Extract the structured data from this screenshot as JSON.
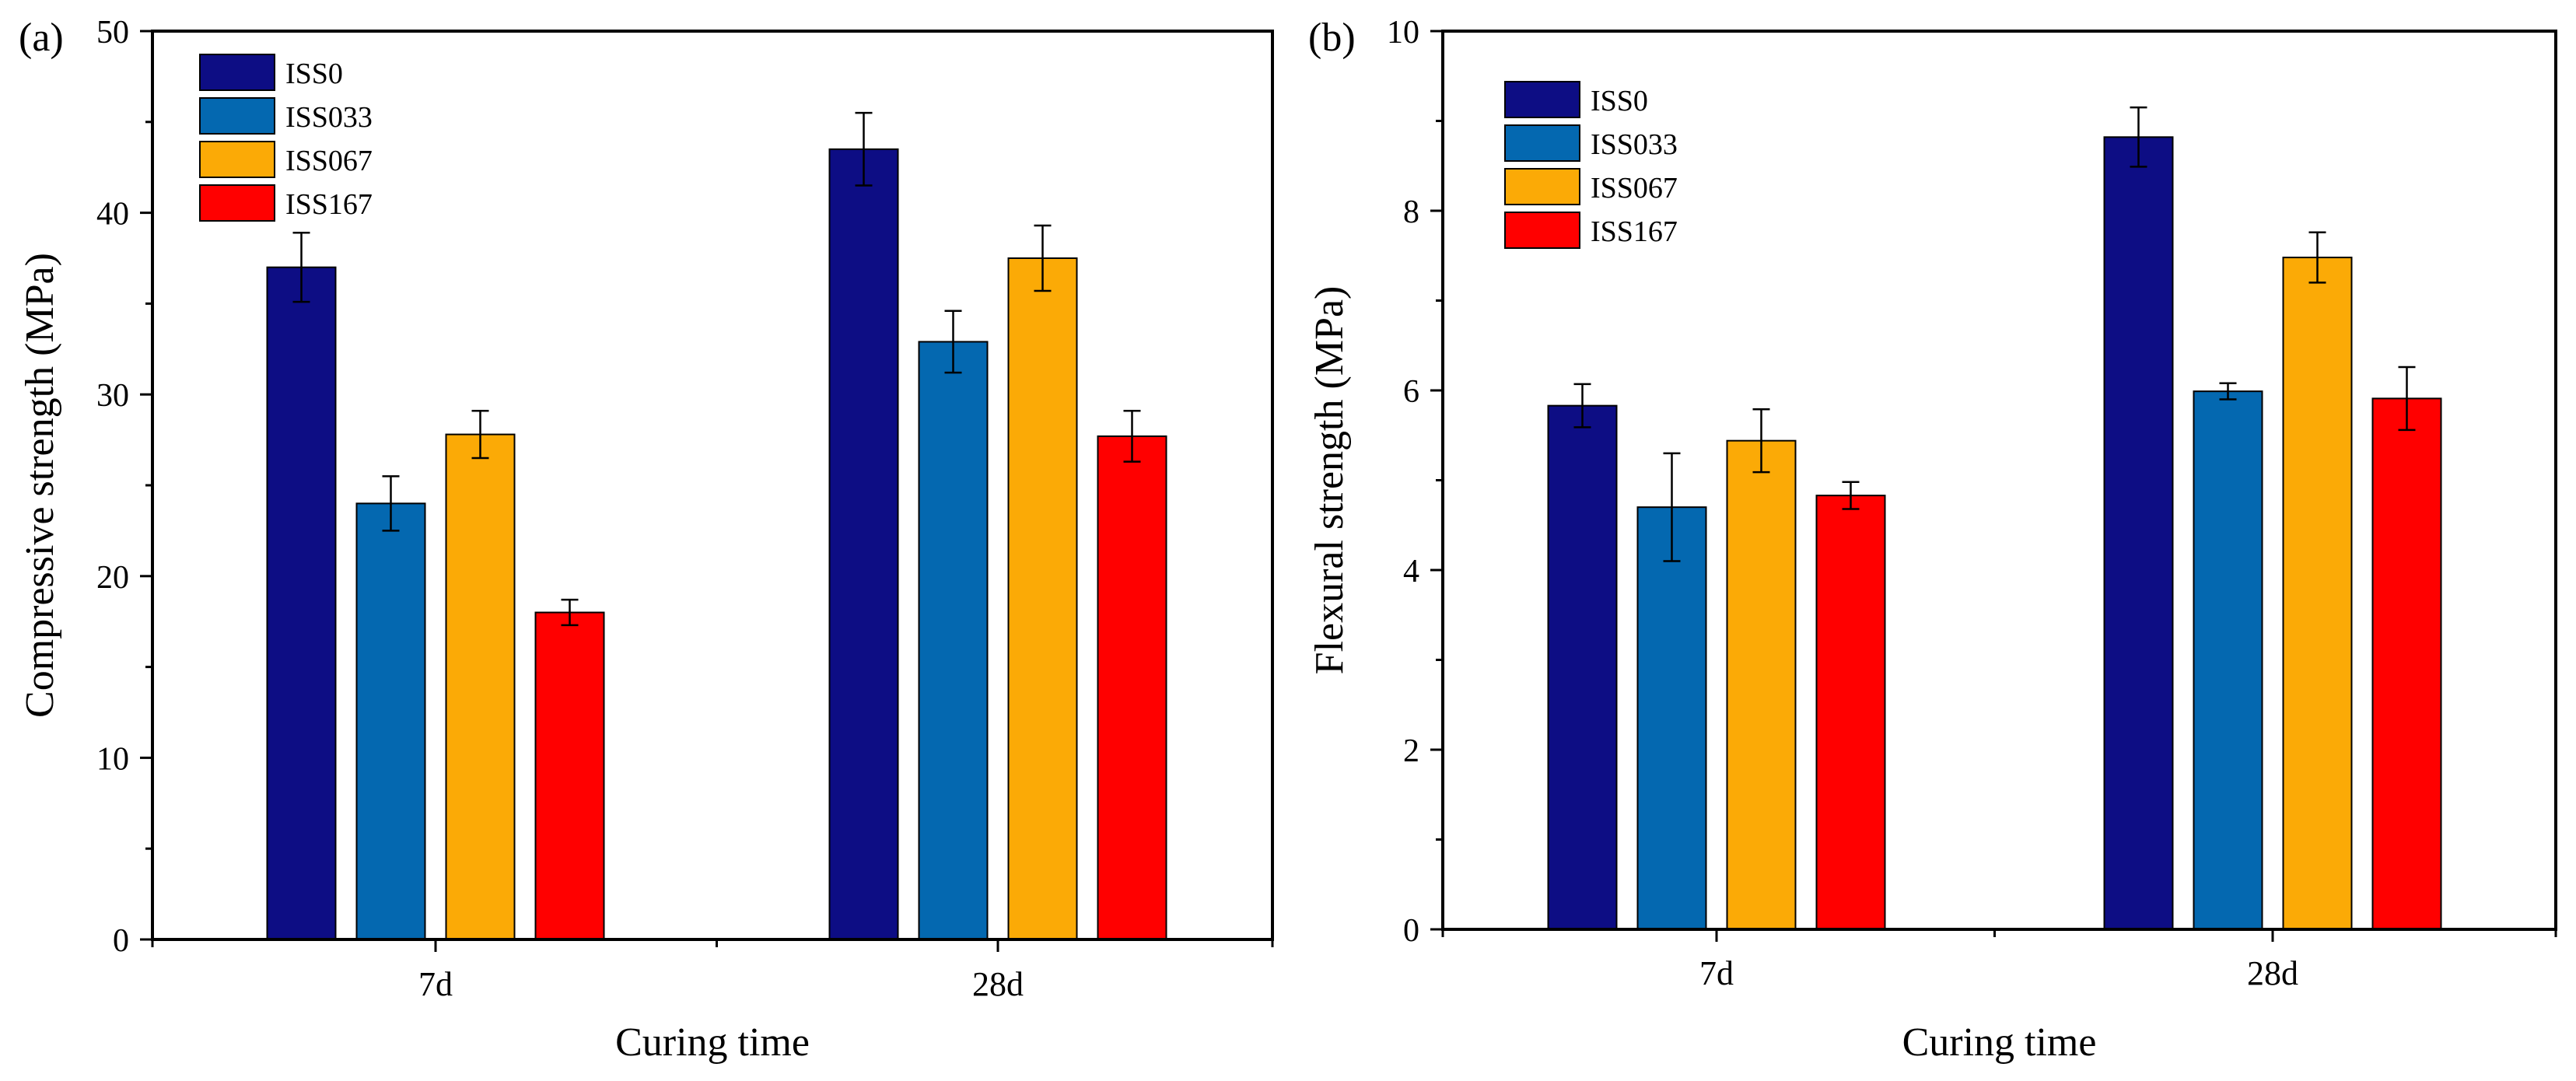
{
  "figure": {
    "panel_count": 2
  },
  "chart_data": [
    {
      "type": "bar",
      "panel_label": "(a)",
      "title": "",
      "xlabel": "Curing time",
      "ylabel": "Compressive strength (MPa)",
      "categories": [
        "7d",
        "28d"
      ],
      "ylim": [
        0,
        50
      ],
      "yticks": [
        0,
        10,
        20,
        30,
        40,
        50
      ],
      "grid": false,
      "legend_position": "top-left",
      "series": [
        {
          "name": "ISS0",
          "color": "#0D0D84",
          "values": [
            37.0,
            43.5
          ],
          "errors": [
            1.9,
            2.0
          ]
        },
        {
          "name": "ISS033",
          "color": "#0468B0",
          "values": [
            24.0,
            32.9
          ],
          "errors": [
            1.5,
            1.7
          ]
        },
        {
          "name": "ISS067",
          "color": "#FBAA06",
          "values": [
            27.8,
            37.5
          ],
          "errors": [
            1.3,
            1.8
          ]
        },
        {
          "name": "ISS167",
          "color": "#FF0000",
          "values": [
            18.0,
            27.7
          ],
          "errors": [
            0.7,
            1.4
          ]
        }
      ]
    },
    {
      "type": "bar",
      "panel_label": "(b)",
      "title": "",
      "xlabel": "Curing time",
      "ylabel": "Flexural strength (MPa)",
      "categories": [
        "7d",
        "28d"
      ],
      "ylim": [
        0,
        10
      ],
      "yticks": [
        0,
        2,
        4,
        6,
        8,
        10
      ],
      "grid": false,
      "legend_position": "top-left",
      "series": [
        {
          "name": "ISS0",
          "color": "#0D0D84",
          "values": [
            5.83,
            8.82
          ],
          "errors": [
            0.24,
            0.33
          ]
        },
        {
          "name": "ISS033",
          "color": "#0468B0",
          "values": [
            4.7,
            5.99
          ],
          "errors": [
            0.6,
            0.09
          ]
        },
        {
          "name": "ISS067",
          "color": "#FBAA06",
          "values": [
            5.44,
            7.48
          ],
          "errors": [
            0.35,
            0.28
          ]
        },
        {
          "name": "ISS167",
          "color": "#FF0000",
          "values": [
            4.83,
            5.91
          ],
          "errors": [
            0.15,
            0.35
          ]
        }
      ]
    }
  ]
}
